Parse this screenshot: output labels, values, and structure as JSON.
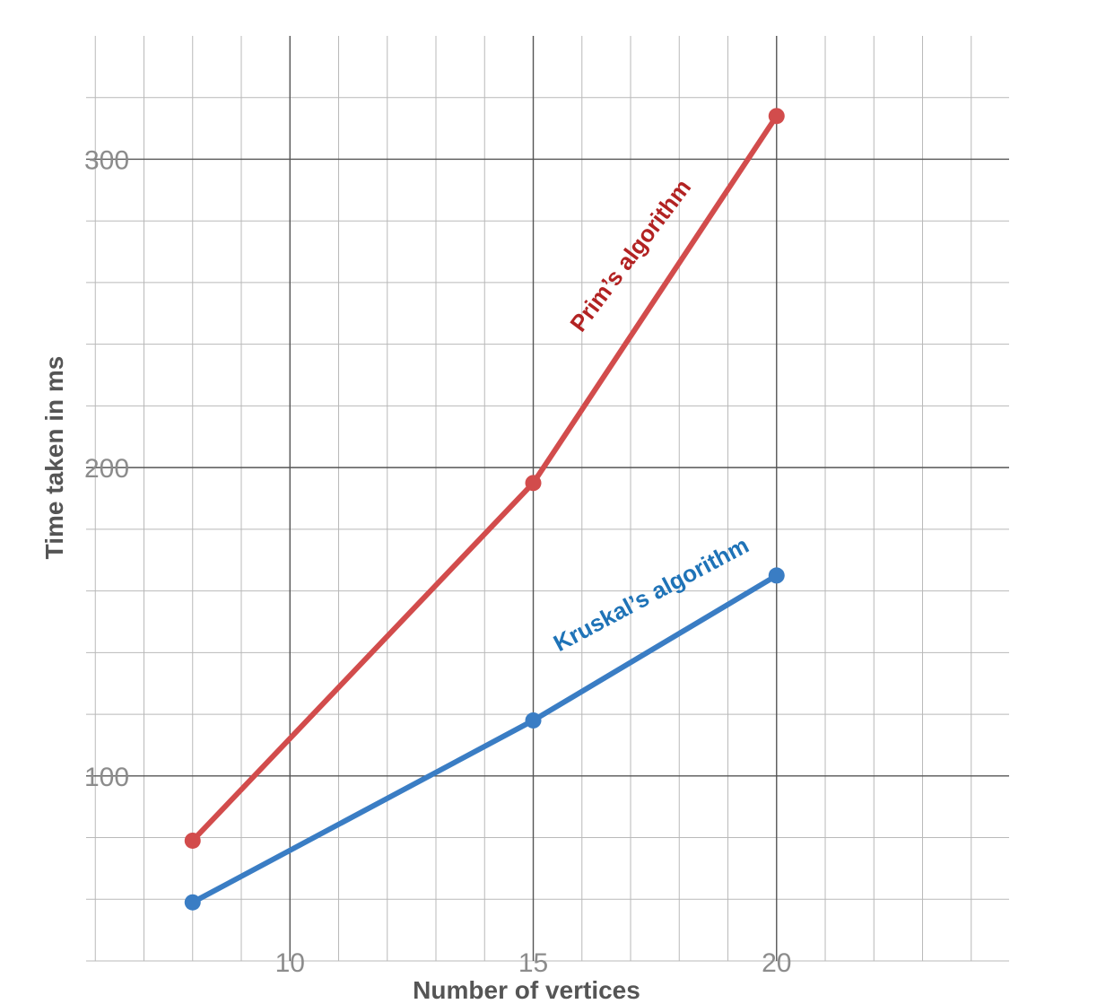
{
  "chart_data": {
    "type": "line",
    "xlabel": "Number of vertices",
    "ylabel": "Time taken in ms",
    "xlim": [
      5,
      25.7
    ],
    "ylim": [
      40,
      340
    ],
    "x_ticks": [
      10,
      15,
      20
    ],
    "y_ticks": [
      100,
      200,
      300
    ],
    "grid": true,
    "series": [
      {
        "name": "Prim’s algorithm",
        "color": "#d24c4c",
        "label_color": "#b22222",
        "x": [
          8,
          15,
          20
        ],
        "y": [
          79,
          195,
          314
        ]
      },
      {
        "name": "Kruskal’s algorithm",
        "color": "#3a7dc4",
        "label_color": "#1f73b7",
        "x": [
          8,
          15,
          20
        ],
        "y": [
          59,
          118,
          165
        ]
      }
    ]
  }
}
